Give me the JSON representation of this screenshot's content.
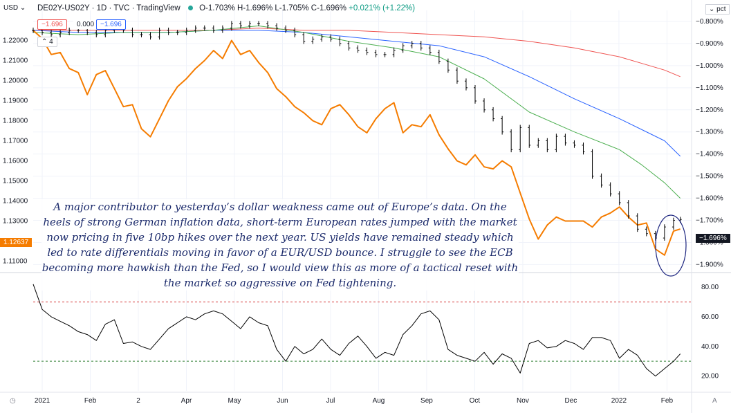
{
  "header": {
    "symbol": "DE02Y-US02Y · 1D · TVC · TradingView",
    "ohlc": "O-1.703% H-1.696% L-1.705% C-1.696%",
    "change": "+0.021% (+1.22%)"
  },
  "left_axis_currency": "USD",
  "right_axis_unit": "pct",
  "pills": {
    "value_red": "−1.696",
    "value_zero": "0.000",
    "value_blue": "−1.696",
    "count": "4"
  },
  "price_labels": {
    "left_current": "1.12637",
    "right_current": "−1.696%"
  },
  "annotation": "A major contributor to yesterday’s dollar weakness came out of Europe’s data. On the heels of strong German inflation data, short-term European rates jumped with the market now pricing in five 10bp hikes over the next year. US yields have remained steady which led to rate differentials moving in favor of a EUR/USD bounce. I struggle to see the ECB becoming more hawkish than the Fed, so I would view this as more of a tactical reset with the market so aggressive on Fed tightening.",
  "footer": {
    "settings_label": "A",
    "timezone_icon": "clock"
  },
  "colors": {
    "spread": "#000000",
    "eurusd": "#f57c00",
    "ma_green": "#4caf50",
    "ma_blue": "#2962ff",
    "ma_red": "#ef5350",
    "rsi": "#000000",
    "rsi_upper": "#d32f2f",
    "rsi_lower": "#2e7d32",
    "circle": "#1a237e"
  },
  "chart_data": [
    {
      "type": "line",
      "panel": "main",
      "x_ticks": [
        "2021",
        "Feb",
        "2",
        "Apr",
        "May",
        "Jun",
        "Jul",
        "Aug",
        "Sep",
        "Oct",
        "Nov",
        "Dec",
        "2022",
        "Feb"
      ],
      "left_axis": {
        "label": "USD",
        "ticks": [
          "1.22000",
          "1.21000",
          "1.20000",
          "1.19000",
          "1.18000",
          "1.17000",
          "1.16000",
          "1.15000",
          "1.14000",
          "1.13000",
          "1.12000",
          "1.11000"
        ],
        "ylim": [
          1.105,
          1.235
        ]
      },
      "right_axis": {
        "label": "pct",
        "ticks": [
          "-0.800%",
          "-0.900%",
          "-1.000%",
          "-1.100%",
          "-1.200%",
          "-1.300%",
          "-1.400%",
          "-1.500%",
          "-1.600%",
          "-1.700%",
          "-1.800%",
          "-1.900%"
        ],
        "ylim": [
          -1.93,
          -0.75
        ]
      },
      "series": [
        {
          "name": "DE02Y-US02Y",
          "axis": "right",
          "style": "bars",
          "x": [
            0,
            4,
            8,
            12,
            16,
            20,
            24,
            28,
            32,
            36,
            40,
            44,
            48,
            52,
            56,
            60,
            64,
            68,
            72,
            76,
            80,
            84,
            88,
            92,
            96,
            100,
            104,
            108,
            112,
            116,
            120,
            124,
            128,
            132,
            136,
            140,
            144,
            148,
            152,
            156,
            160,
            164,
            168,
            172,
            176,
            180,
            184,
            188,
            192,
            196,
            200,
            204,
            208,
            212,
            216,
            220,
            224,
            228,
            232,
            236,
            240,
            244,
            248,
            252,
            256,
            260,
            264,
            268,
            272,
            276,
            280,
            284,
            287
          ],
          "values": [
            -0.84,
            -0.85,
            -0.86,
            -0.85,
            -0.84,
            -0.84,
            -0.85,
            -0.86,
            -0.84,
            -0.82,
            -0.84,
            -0.86,
            -0.86,
            -0.87,
            -0.84,
            -0.85,
            -0.85,
            -0.84,
            -0.83,
            -0.83,
            -0.84,
            -0.83,
            -0.81,
            -0.82,
            -0.81,
            -0.81,
            -0.82,
            -0.83,
            -0.84,
            -0.86,
            -0.89,
            -0.88,
            -0.87,
            -0.88,
            -0.9,
            -0.92,
            -0.93,
            -0.94,
            -0.95,
            -0.95,
            -0.93,
            -0.91,
            -0.9,
            -0.92,
            -0.94,
            -0.98,
            -1.02,
            -1.07,
            -1.1,
            -1.16,
            -1.2,
            -1.24,
            -1.3,
            -1.38,
            -1.28,
            -1.36,
            -1.34,
            -1.38,
            -1.32,
            -1.35,
            -1.36,
            -1.39,
            -1.5,
            -1.54,
            -1.58,
            -1.62,
            -1.68,
            -1.74,
            -1.76,
            -1.78,
            -1.73,
            -1.7,
            -1.696
          ]
        },
        {
          "name": "EUR/USD",
          "axis": "left",
          "x": [
            0,
            4,
            8,
            12,
            16,
            20,
            24,
            28,
            32,
            36,
            40,
            44,
            48,
            52,
            56,
            60,
            64,
            68,
            72,
            76,
            80,
            84,
            88,
            92,
            96,
            100,
            104,
            108,
            112,
            116,
            120,
            124,
            128,
            132,
            136,
            140,
            144,
            148,
            152,
            156,
            160,
            164,
            168,
            172,
            176,
            180,
            184,
            188,
            192,
            196,
            200,
            204,
            208,
            212,
            216,
            220,
            224,
            228,
            232,
            236,
            240,
            244,
            248,
            252,
            256,
            260,
            264,
            268,
            272,
            276,
            280,
            284,
            287
          ],
          "values": [
            1.225,
            1.221,
            1.213,
            1.214,
            1.206,
            1.204,
            1.193,
            1.203,
            1.205,
            1.196,
            1.187,
            1.188,
            1.176,
            1.172,
            1.181,
            1.19,
            1.197,
            1.201,
            1.206,
            1.21,
            1.215,
            1.211,
            1.22,
            1.213,
            1.215,
            1.209,
            1.204,
            1.196,
            1.192,
            1.187,
            1.184,
            1.18,
            1.178,
            1.186,
            1.188,
            1.183,
            1.177,
            1.174,
            1.181,
            1.186,
            1.189,
            1.174,
            1.178,
            1.177,
            1.183,
            1.173,
            1.166,
            1.16,
            1.158,
            1.163,
            1.157,
            1.156,
            1.16,
            1.157,
            1.144,
            1.131,
            1.121,
            1.128,
            1.132,
            1.13,
            1.13,
            1.13,
            1.127,
            1.132,
            1.134,
            1.137,
            1.132,
            1.128,
            1.129,
            1.116,
            1.113,
            1.125,
            1.126
          ]
        },
        {
          "name": "MA green",
          "axis": "right",
          "x": [
            0,
            20,
            40,
            60,
            80,
            100,
            120,
            140,
            160,
            180,
            200,
            220,
            240,
            260,
            270,
            280,
            287
          ],
          "values": [
            -0.85,
            -0.86,
            -0.85,
            -0.85,
            -0.84,
            -0.82,
            -0.85,
            -0.89,
            -0.92,
            -0.96,
            -1.06,
            -1.21,
            -1.3,
            -1.38,
            -1.45,
            -1.53,
            -1.6
          ]
        },
        {
          "name": "MA blue",
          "axis": "right",
          "x": [
            0,
            20,
            40,
            60,
            80,
            100,
            120,
            140,
            160,
            180,
            200,
            220,
            240,
            260,
            270,
            280,
            287
          ],
          "values": [
            -0.84,
            -0.85,
            -0.85,
            -0.85,
            -0.84,
            -0.84,
            -0.85,
            -0.87,
            -0.89,
            -0.91,
            -0.96,
            -1.05,
            -1.15,
            -1.24,
            -1.29,
            -1.34,
            -1.41
          ]
        },
        {
          "name": "MA red",
          "axis": "right",
          "x": [
            0,
            20,
            40,
            60,
            80,
            100,
            120,
            140,
            160,
            180,
            200,
            220,
            240,
            260,
            270,
            280,
            287
          ],
          "values": [
            -0.84,
            -0.84,
            -0.84,
            -0.84,
            -0.84,
            -0.83,
            -0.84,
            -0.84,
            -0.85,
            -0.86,
            -0.87,
            -0.89,
            -0.92,
            -0.96,
            -0.99,
            -1.02,
            -1.05
          ]
        }
      ]
    },
    {
      "type": "line",
      "panel": "rsi",
      "y_ticks": [
        "80.00",
        "60.00",
        "40.00",
        "20.00"
      ],
      "ylim": [
        10,
        88
      ],
      "levels": [
        70,
        30
      ],
      "series": [
        {
          "name": "RSI",
          "x": [
            0,
            4,
            8,
            12,
            16,
            20,
            24,
            28,
            32,
            36,
            40,
            44,
            48,
            52,
            56,
            60,
            64,
            68,
            72,
            76,
            80,
            84,
            88,
            92,
            96,
            100,
            104,
            108,
            112,
            116,
            120,
            124,
            128,
            132,
            136,
            140,
            144,
            148,
            152,
            156,
            160,
            164,
            168,
            172,
            176,
            180,
            184,
            188,
            192,
            196,
            200,
            204,
            208,
            212,
            216,
            220,
            224,
            228,
            232,
            236,
            240,
            244,
            248,
            252,
            256,
            260,
            264,
            268,
            272,
            276,
            280,
            284,
            287
          ],
          "values": [
            82,
            65,
            60,
            57,
            54,
            50,
            48,
            44,
            55,
            58,
            42,
            43,
            40,
            38,
            45,
            52,
            56,
            60,
            58,
            62,
            64,
            62,
            57,
            52,
            60,
            56,
            54,
            38,
            30,
            40,
            35,
            38,
            45,
            38,
            34,
            42,
            47,
            40,
            32,
            36,
            34,
            48,
            54,
            62,
            64,
            58,
            38,
            34,
            32,
            30,
            36,
            28,
            35,
            32,
            22,
            42,
            44,
            39,
            40,
            44,
            42,
            38,
            46,
            46,
            44,
            32,
            38,
            34,
            25,
            20,
            25,
            30,
            35
          ]
        }
      ]
    }
  ]
}
